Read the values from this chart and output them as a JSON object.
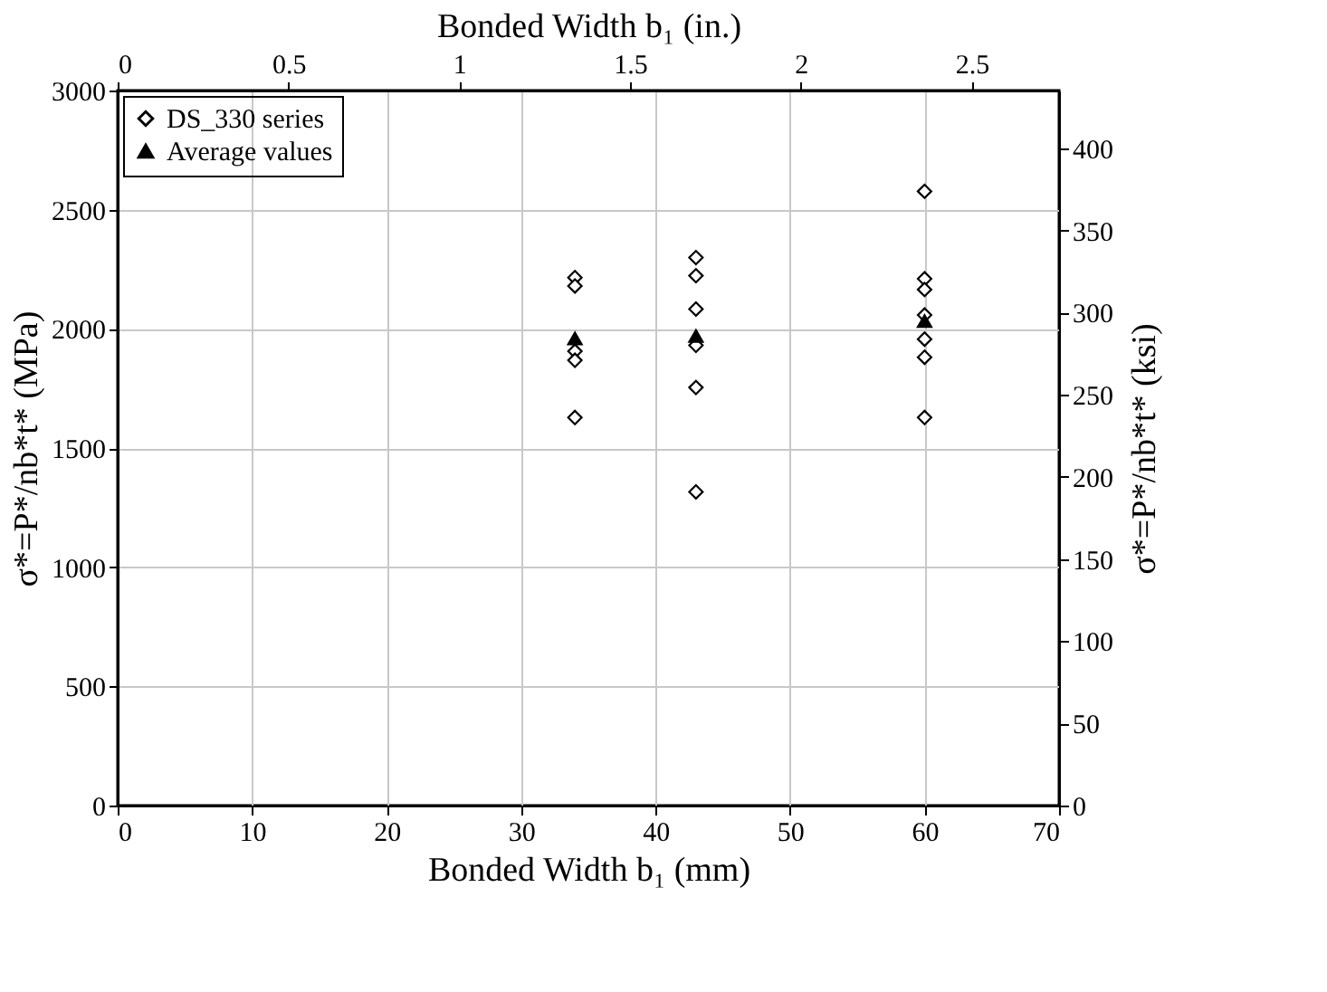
{
  "chart_data": {
    "type": "scatter",
    "xlabel": "Bonded Width b₁ (mm)",
    "ylabel": "σ*=P*/nb*t* (MPa)",
    "x2label": "Bonded Width b₁ (in.)",
    "y2label": "σ*=P*/nb*t* (ksi)",
    "xlim": [
      0,
      70
    ],
    "xticks": [
      0,
      10,
      20,
      30,
      40,
      50,
      60,
      70
    ],
    "ylim": [
      0,
      3000
    ],
    "yticks": [
      0,
      500,
      1000,
      1500,
      2000,
      2500,
      3000
    ],
    "x2lim": [
      0,
      2.756
    ],
    "x2ticks": [
      0,
      0.5,
      1,
      1.5,
      2,
      2.5
    ],
    "y2lim": [
      0,
      435.1
    ],
    "y2ticks": [
      0,
      50,
      100,
      150,
      200,
      250,
      300,
      350,
      400
    ],
    "grid": true,
    "legend": "top left",
    "series": [
      {
        "name": "DS_330 series",
        "color": "#000000",
        "marker": "diamond",
        "x": [
          34,
          34,
          34,
          34,
          34,
          43,
          43,
          43,
          43,
          43,
          43,
          60,
          60,
          60,
          60,
          60,
          60,
          60
        ],
        "values": [
          2215,
          2180,
          1906,
          1868,
          1628,
          2299,
          2223,
          2083,
          1931,
          1754,
          1316,
          2577,
          2210,
          2165,
          2058,
          1957,
          1881,
          1628
        ]
      },
      {
        "name": "Average values",
        "color": "#000000",
        "marker": "triangle",
        "x": [
          34,
          43,
          60
        ],
        "values": [
          1960,
          1970,
          2033
        ]
      }
    ]
  }
}
